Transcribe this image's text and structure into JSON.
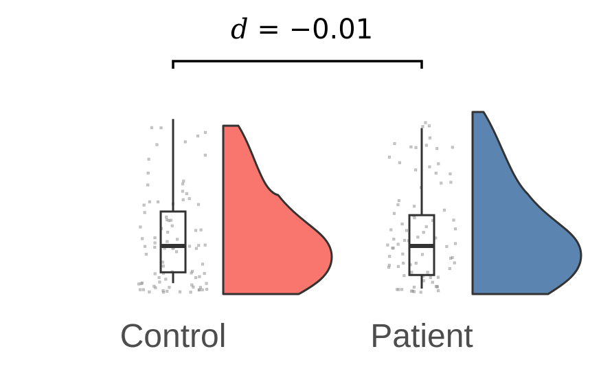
{
  "annotation": {
    "d_symbol": "d",
    "equals": " = ",
    "value": "−0.01"
  },
  "categories": [
    "Control",
    "Patient"
  ],
  "chart_data": {
    "type": "raincloud",
    "categories": [
      "Control",
      "Patient"
    ],
    "colors": {
      "Control": "#F8766D",
      "Patient": "#5B84B1",
      "outline": "#333333",
      "points": "#999999"
    },
    "boxplots": [
      {
        "name": "Control",
        "whisker_low": 0.06,
        "q1": 0.12,
        "median": 0.265,
        "q3": 0.455,
        "whisker_high": 0.965
      },
      {
        "name": "Patient",
        "whisker_low": 0.03,
        "q1": 0.105,
        "median": 0.265,
        "q3": 0.435,
        "whisker_high": 0.915
      }
    ],
    "density_peak_y": [
      0.22,
      0.28
    ],
    "annotation": "d = −0.01",
    "bracket": [
      "Control",
      "Patient"
    ],
    "axes_visible": false,
    "grid": false
  }
}
